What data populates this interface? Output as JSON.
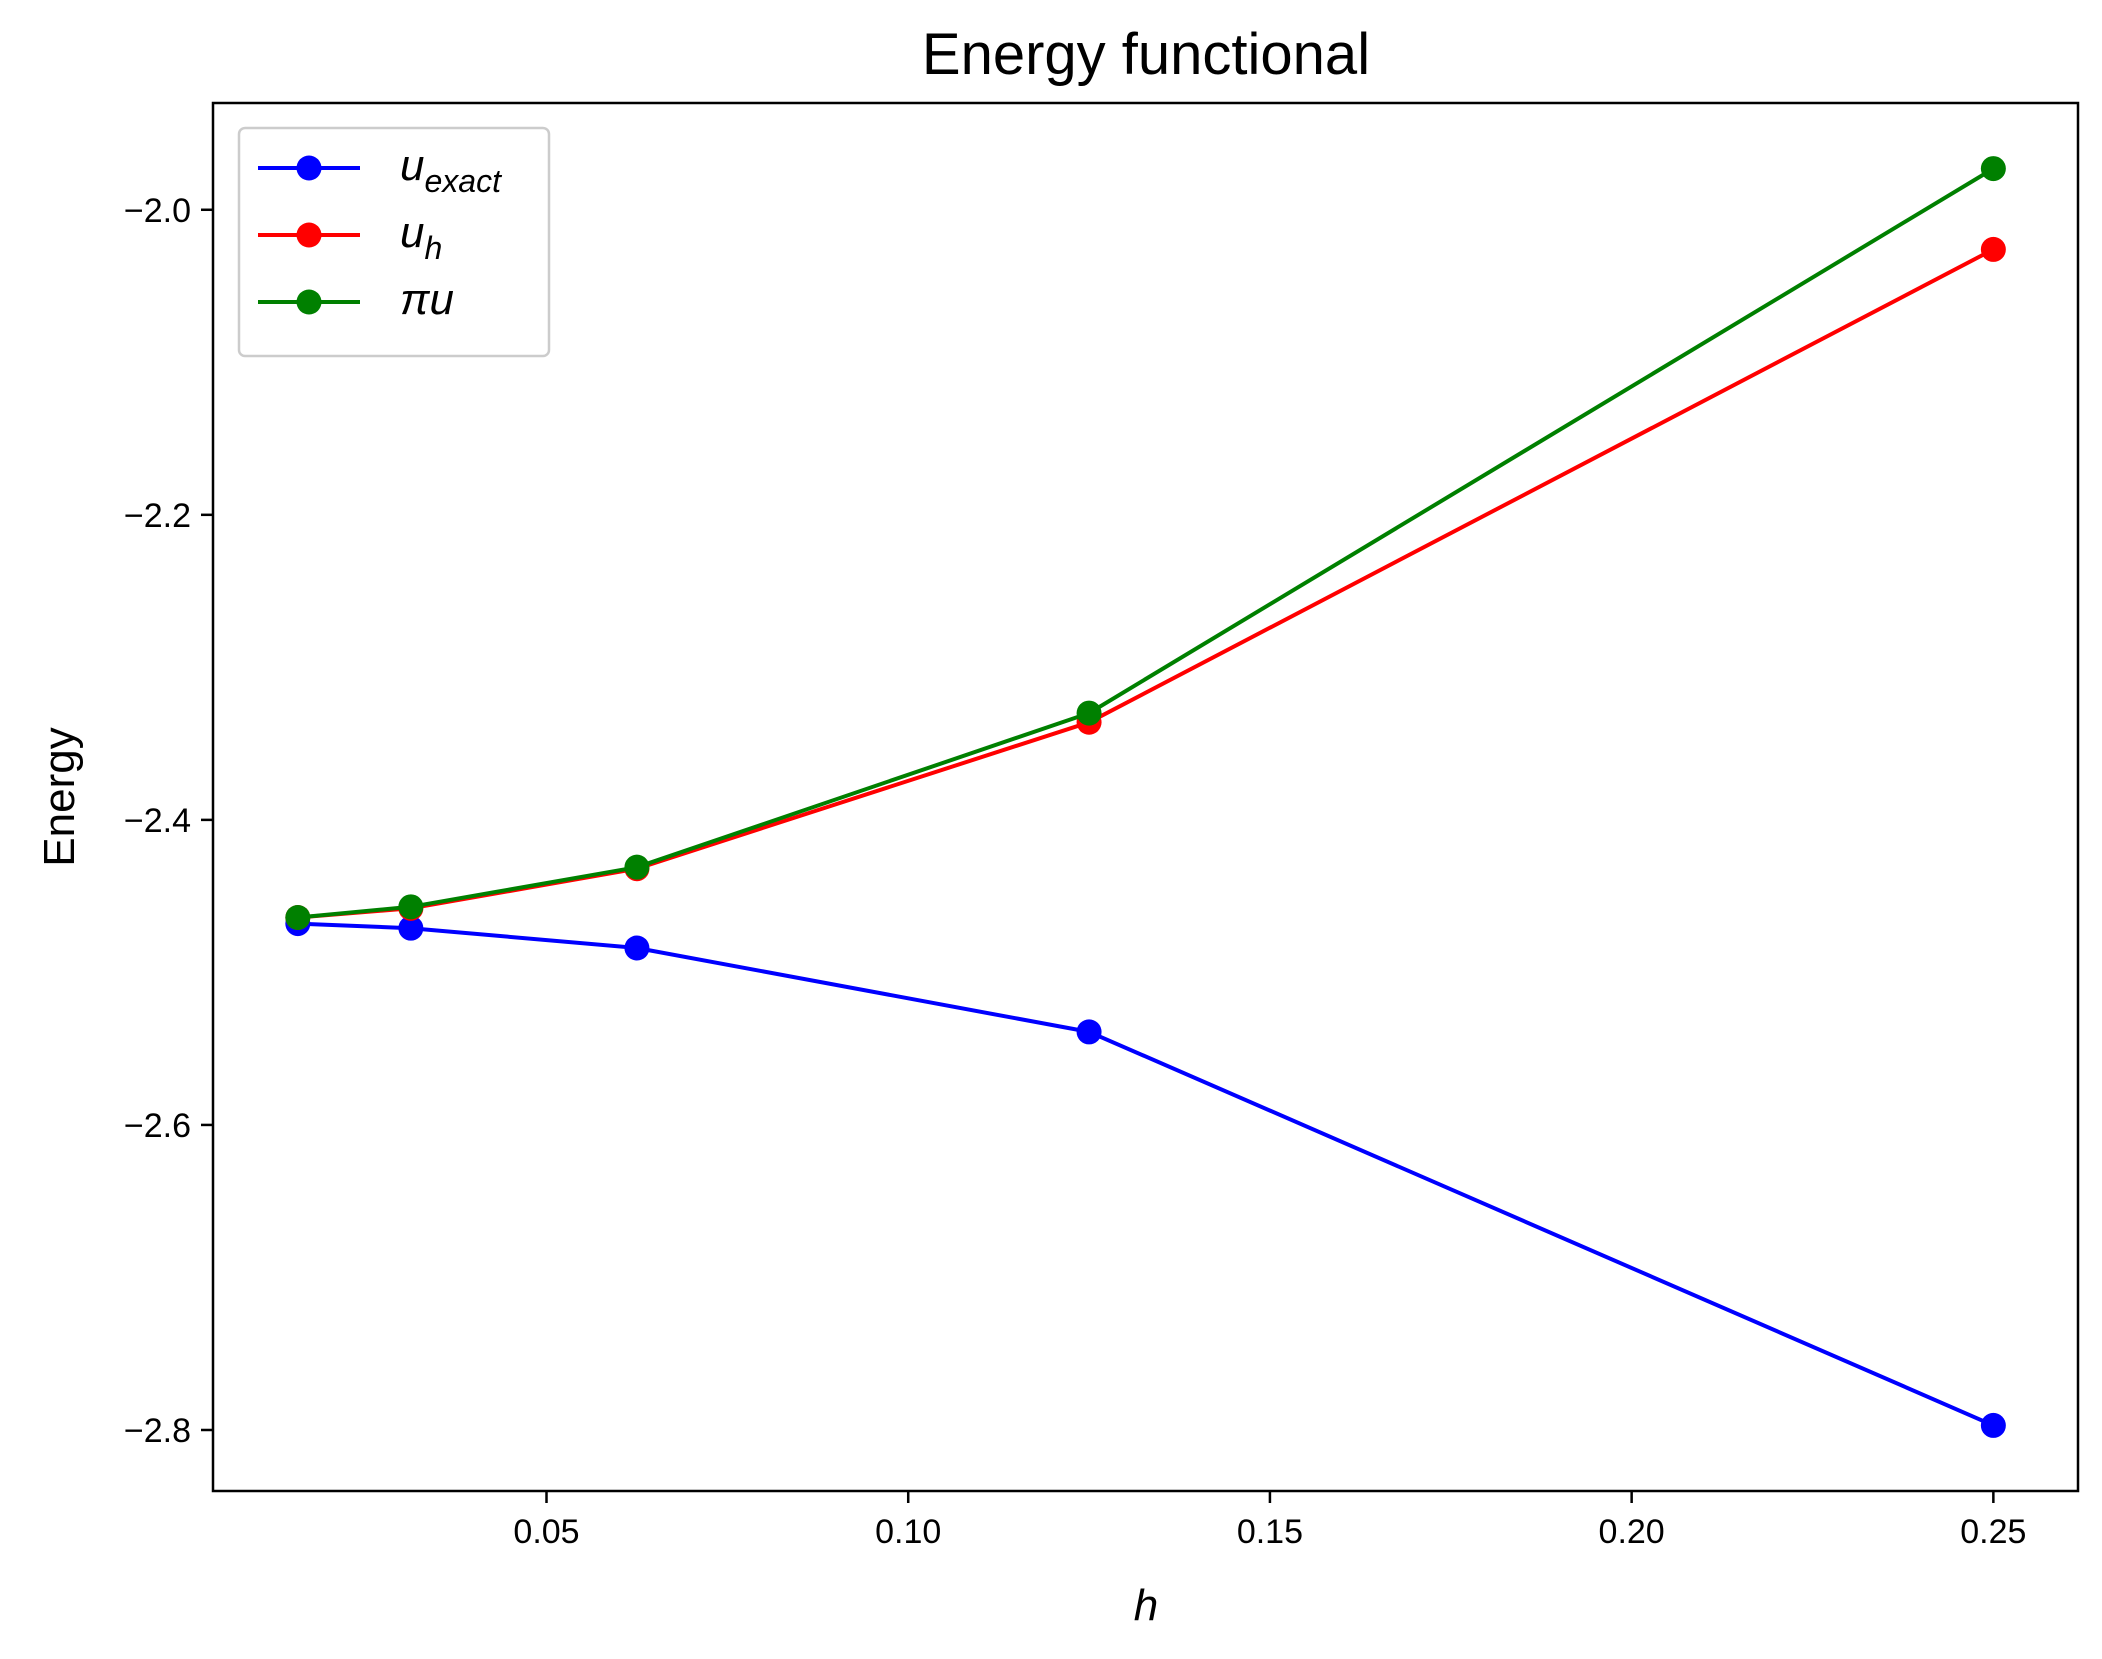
{
  "chart_data": {
    "type": "line",
    "title": "Energy functional",
    "xlabel": "h",
    "ylabel": "Energy",
    "x": [
      0.015625,
      0.03125,
      0.0625,
      0.125,
      0.25
    ],
    "xlim": [
      0.0039,
      0.2617
    ],
    "ylim": [
      -2.84,
      -1.93
    ],
    "xticks": [
      0.05,
      0.1,
      0.15,
      0.2,
      0.25
    ],
    "xtick_labels": [
      "0.05",
      "0.10",
      "0.15",
      "0.20",
      "0.25"
    ],
    "yticks": [
      -2.0,
      -2.2,
      -2.4,
      -2.6,
      -2.8
    ],
    "ytick_labels": [
      "−2.0",
      "−2.2",
      "−2.4",
      "−2.6",
      "−2.8"
    ],
    "grid": false,
    "legend_position": "top-left",
    "series": [
      {
        "name": "u_exact",
        "label_main": "u",
        "label_sub": "exact",
        "color": "#0000ff",
        "values": [
          -2.468,
          -2.471,
          -2.484,
          -2.539,
          -2.797
        ]
      },
      {
        "name": "u_h",
        "label_main": "u",
        "label_sub": "h",
        "color": "#ff0000",
        "values": [
          -2.464,
          -2.458,
          -2.432,
          -2.336,
          -2.026
        ]
      },
      {
        "name": "πu",
        "label_main": "πu",
        "label_sub": "",
        "color": "#008000",
        "values": [
          -2.464,
          -2.457,
          -2.431,
          -2.33,
          -1.973
        ]
      }
    ]
  }
}
